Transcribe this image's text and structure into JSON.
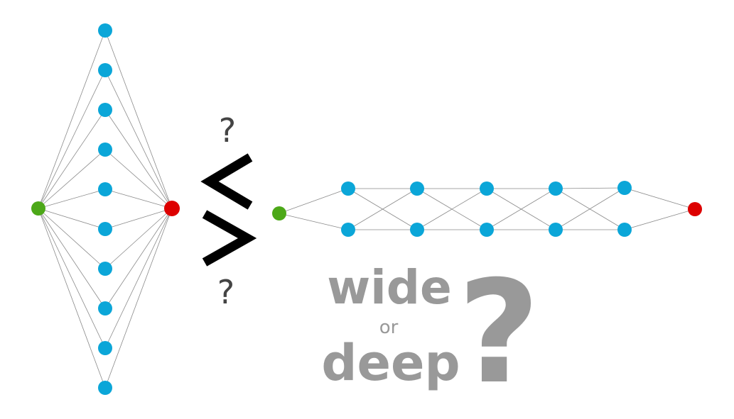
{
  "colors": {
    "input_node": "#4ca818",
    "hidden_node": "#0ba6d8",
    "output_node": "#dd0000",
    "edge": "#8a8a8a",
    "comparison_symbol": "#000000",
    "small_question_mark": "#444444",
    "caption": "#999999"
  },
  "wide_network": {
    "input_nodes": 1,
    "hidden_nodes": 10,
    "output_nodes": 1
  },
  "comparison": {
    "top_question": "?",
    "bottom_question": "?",
    "symbols": [
      "<",
      ">"
    ]
  },
  "deep_network": {
    "input_nodes": 1,
    "hidden_layers": 5,
    "nodes_per_layer": 2,
    "output_nodes": 1
  },
  "caption": {
    "word_wide": "wide",
    "word_or": "or",
    "word_deep": "deep",
    "big_question": "?"
  }
}
